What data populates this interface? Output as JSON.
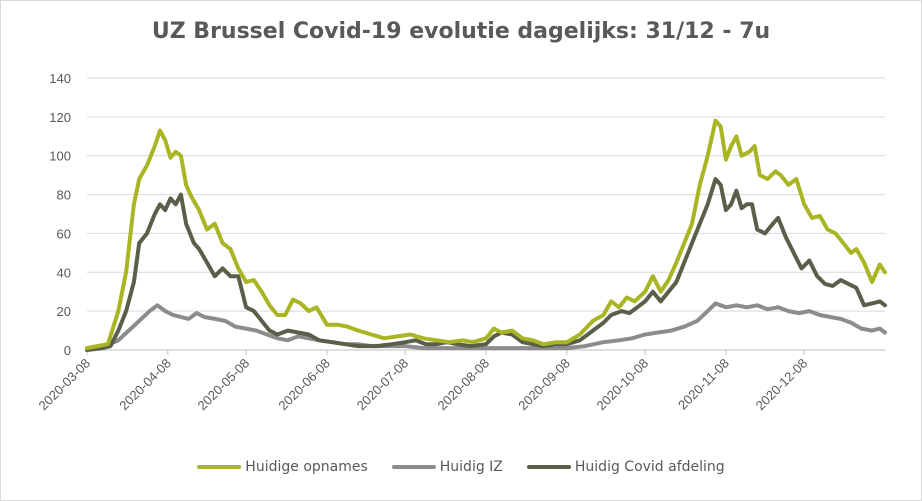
{
  "chart_data": {
    "type": "line",
    "title": "UZ Brussel Covid-19 evolutie dagelijks: 31/12 - 7u",
    "xlabel": "",
    "ylabel": "",
    "ylim": [
      0,
      140
    ],
    "yticks": [
      "0",
      "20",
      "40",
      "60",
      "80",
      "100",
      "120",
      "140"
    ],
    "x_range": [
      "2020-03-08",
      "2020-12-31"
    ],
    "xticks": [
      "2020-03-08",
      "2020-04-08",
      "2020-05-08",
      "2020-06-08",
      "2020-07-08",
      "2020-08-08",
      "2020-09-08",
      "2020-10-08",
      "2020-11-08",
      "2020-12-08"
    ],
    "grid": "horizontal",
    "legend": "bottom",
    "series": [
      {
        "name": "Huidige opnames",
        "color": "#a9b523",
        "points": [
          [
            "2020-03-08",
            1
          ],
          [
            "2020-03-12",
            2
          ],
          [
            "2020-03-16",
            3
          ],
          [
            "2020-03-20",
            20
          ],
          [
            "2020-03-23",
            40
          ],
          [
            "2020-03-26",
            75
          ],
          [
            "2020-03-28",
            88
          ],
          [
            "2020-03-31",
            95
          ],
          [
            "2020-04-03",
            105
          ],
          [
            "2020-04-05",
            113
          ],
          [
            "2020-04-07",
            108
          ],
          [
            "2020-04-09",
            99
          ],
          [
            "2020-04-11",
            102
          ],
          [
            "2020-04-13",
            100
          ],
          [
            "2020-04-15",
            85
          ],
          [
            "2020-04-17",
            79
          ],
          [
            "2020-04-20",
            72
          ],
          [
            "2020-04-23",
            62
          ],
          [
            "2020-04-26",
            65
          ],
          [
            "2020-04-29",
            55
          ],
          [
            "2020-05-02",
            52
          ],
          [
            "2020-05-05",
            42
          ],
          [
            "2020-05-08",
            35
          ],
          [
            "2020-05-11",
            36
          ],
          [
            "2020-05-14",
            30
          ],
          [
            "2020-05-17",
            23
          ],
          [
            "2020-05-20",
            18
          ],
          [
            "2020-05-23",
            18
          ],
          [
            "2020-05-26",
            26
          ],
          [
            "2020-05-29",
            24
          ],
          [
            "2020-06-01",
            20
          ],
          [
            "2020-06-04",
            22
          ],
          [
            "2020-06-08",
            13
          ],
          [
            "2020-06-12",
            13
          ],
          [
            "2020-06-16",
            12
          ],
          [
            "2020-06-20",
            10
          ],
          [
            "2020-06-25",
            8
          ],
          [
            "2020-06-30",
            6
          ],
          [
            "2020-07-05",
            7
          ],
          [
            "2020-07-10",
            8
          ],
          [
            "2020-07-15",
            6
          ],
          [
            "2020-07-20",
            5
          ],
          [
            "2020-07-25",
            4
          ],
          [
            "2020-07-30",
            5
          ],
          [
            "2020-08-03",
            4
          ],
          [
            "2020-08-08",
            6
          ],
          [
            "2020-08-11",
            11
          ],
          [
            "2020-08-14",
            9
          ],
          [
            "2020-08-18",
            10
          ],
          [
            "2020-08-22",
            6
          ],
          [
            "2020-08-26",
            5
          ],
          [
            "2020-08-30",
            3
          ],
          [
            "2020-09-04",
            4
          ],
          [
            "2020-09-08",
            4
          ],
          [
            "2020-09-13",
            8
          ],
          [
            "2020-09-18",
            15
          ],
          [
            "2020-09-22",
            18
          ],
          [
            "2020-09-25",
            25
          ],
          [
            "2020-09-28",
            22
          ],
          [
            "2020-10-01",
            27
          ],
          [
            "2020-10-04",
            25
          ],
          [
            "2020-10-08",
            30
          ],
          [
            "2020-10-11",
            38
          ],
          [
            "2020-10-14",
            30
          ],
          [
            "2020-10-17",
            36
          ],
          [
            "2020-10-20",
            45
          ],
          [
            "2020-10-23",
            55
          ],
          [
            "2020-10-26",
            65
          ],
          [
            "2020-10-29",
            85
          ],
          [
            "2020-11-01",
            100
          ],
          [
            "2020-11-04",
            118
          ],
          [
            "2020-11-06",
            115
          ],
          [
            "2020-11-08",
            98
          ],
          [
            "2020-11-10",
            105
          ],
          [
            "2020-11-12",
            110
          ],
          [
            "2020-11-14",
            100
          ],
          [
            "2020-11-17",
            102
          ],
          [
            "2020-11-19",
            105
          ],
          [
            "2020-11-21",
            90
          ],
          [
            "2020-11-24",
            88
          ],
          [
            "2020-11-27",
            92
          ],
          [
            "2020-11-29",
            90
          ],
          [
            "2020-12-02",
            85
          ],
          [
            "2020-12-05",
            88
          ],
          [
            "2020-12-08",
            75
          ],
          [
            "2020-12-11",
            68
          ],
          [
            "2020-12-14",
            69
          ],
          [
            "2020-12-17",
            62
          ],
          [
            "2020-12-20",
            60
          ],
          [
            "2020-12-23",
            55
          ],
          [
            "2020-12-26",
            50
          ],
          [
            "2020-12-28",
            52
          ],
          [
            "2020-12-31",
            45
          ],
          [
            "2021-01-03",
            35
          ],
          [
            "2021-01-06",
            44
          ],
          [
            "2021-01-08",
            40
          ]
        ]
      },
      {
        "name": "Huidig IZ",
        "color": "#8c8c8c",
        "points": [
          [
            "2020-03-08",
            1
          ],
          [
            "2020-03-15",
            2
          ],
          [
            "2020-03-20",
            5
          ],
          [
            "2020-03-24",
            10
          ],
          [
            "2020-03-28",
            15
          ],
          [
            "2020-04-01",
            20
          ],
          [
            "2020-04-04",
            23
          ],
          [
            "2020-04-07",
            20
          ],
          [
            "2020-04-10",
            18
          ],
          [
            "2020-04-13",
            17
          ],
          [
            "2020-04-16",
            16
          ],
          [
            "2020-04-19",
            19
          ],
          [
            "2020-04-22",
            17
          ],
          [
            "2020-04-26",
            16
          ],
          [
            "2020-04-30",
            15
          ],
          [
            "2020-05-04",
            12
          ],
          [
            "2020-05-08",
            11
          ],
          [
            "2020-05-12",
            10
          ],
          [
            "2020-05-16",
            8
          ],
          [
            "2020-05-20",
            6
          ],
          [
            "2020-05-24",
            5
          ],
          [
            "2020-05-28",
            7
          ],
          [
            "2020-06-01",
            6
          ],
          [
            "2020-06-05",
            5
          ],
          [
            "2020-06-10",
            4
          ],
          [
            "2020-06-15",
            3
          ],
          [
            "2020-06-20",
            3
          ],
          [
            "2020-06-25",
            2
          ],
          [
            "2020-07-01",
            2
          ],
          [
            "2020-07-08",
            2
          ],
          [
            "2020-07-15",
            1
          ],
          [
            "2020-07-22",
            1
          ],
          [
            "2020-07-30",
            1
          ],
          [
            "2020-08-08",
            1
          ],
          [
            "2020-08-15",
            1
          ],
          [
            "2020-08-22",
            1
          ],
          [
            "2020-08-30",
            1
          ],
          [
            "2020-09-08",
            1
          ],
          [
            "2020-09-15",
            2
          ],
          [
            "2020-09-22",
            4
          ],
          [
            "2020-09-28",
            5
          ],
          [
            "2020-10-03",
            6
          ],
          [
            "2020-10-08",
            8
          ],
          [
            "2020-10-13",
            9
          ],
          [
            "2020-10-18",
            10
          ],
          [
            "2020-10-23",
            12
          ],
          [
            "2020-10-28",
            15
          ],
          [
            "2020-11-01",
            20
          ],
          [
            "2020-11-04",
            24
          ],
          [
            "2020-11-08",
            22
          ],
          [
            "2020-11-12",
            23
          ],
          [
            "2020-11-16",
            22
          ],
          [
            "2020-11-20",
            23
          ],
          [
            "2020-11-24",
            21
          ],
          [
            "2020-11-28",
            22
          ],
          [
            "2020-12-02",
            20
          ],
          [
            "2020-12-06",
            19
          ],
          [
            "2020-12-10",
            20
          ],
          [
            "2020-12-14",
            18
          ],
          [
            "2020-12-18",
            17
          ],
          [
            "2020-12-22",
            16
          ],
          [
            "2020-12-26",
            14
          ],
          [
            "2020-12-30",
            11
          ],
          [
            "2021-01-03",
            10
          ],
          [
            "2021-01-06",
            11
          ],
          [
            "2021-01-08",
            9
          ]
        ]
      },
      {
        "name": "Huidig Covid afdeling",
        "color": "#5a5f4a",
        "points": [
          [
            "2020-03-08",
            0
          ],
          [
            "2020-03-14",
            1
          ],
          [
            "2020-03-17",
            2
          ],
          [
            "2020-03-20",
            10
          ],
          [
            "2020-03-23",
            20
          ],
          [
            "2020-03-26",
            35
          ],
          [
            "2020-03-28",
            55
          ],
          [
            "2020-03-31",
            60
          ],
          [
            "2020-04-03",
            70
          ],
          [
            "2020-04-05",
            75
          ],
          [
            "2020-04-07",
            72
          ],
          [
            "2020-04-09",
            78
          ],
          [
            "2020-04-11",
            75
          ],
          [
            "2020-04-13",
            80
          ],
          [
            "2020-04-15",
            65
          ],
          [
            "2020-04-18",
            55
          ],
          [
            "2020-04-20",
            52
          ],
          [
            "2020-04-23",
            45
          ],
          [
            "2020-04-26",
            38
          ],
          [
            "2020-04-29",
            42
          ],
          [
            "2020-05-02",
            38
          ],
          [
            "2020-05-05",
            38
          ],
          [
            "2020-05-08",
            22
          ],
          [
            "2020-05-11",
            20
          ],
          [
            "2020-05-14",
            15
          ],
          [
            "2020-05-17",
            10
          ],
          [
            "2020-05-20",
            8
          ],
          [
            "2020-05-24",
            10
          ],
          [
            "2020-05-28",
            9
          ],
          [
            "2020-06-01",
            8
          ],
          [
            "2020-06-05",
            5
          ],
          [
            "2020-06-10",
            4
          ],
          [
            "2020-06-15",
            3
          ],
          [
            "2020-06-20",
            2
          ],
          [
            "2020-06-27",
            2
          ],
          [
            "2020-07-03",
            3
          ],
          [
            "2020-07-08",
            4
          ],
          [
            "2020-07-12",
            5
          ],
          [
            "2020-07-16",
            3
          ],
          [
            "2020-07-20",
            3
          ],
          [
            "2020-07-24",
            4
          ],
          [
            "2020-07-28",
            3
          ],
          [
            "2020-08-02",
            2
          ],
          [
            "2020-08-08",
            3
          ],
          [
            "2020-08-11",
            7
          ],
          [
            "2020-08-14",
            9
          ],
          [
            "2020-08-18",
            8
          ],
          [
            "2020-08-22",
            4
          ],
          [
            "2020-08-26",
            3
          ],
          [
            "2020-08-30",
            2
          ],
          [
            "2020-09-04",
            3
          ],
          [
            "2020-09-08",
            3
          ],
          [
            "2020-09-13",
            5
          ],
          [
            "2020-09-18",
            10
          ],
          [
            "2020-09-22",
            14
          ],
          [
            "2020-09-25",
            18
          ],
          [
            "2020-09-29",
            20
          ],
          [
            "2020-10-02",
            19
          ],
          [
            "2020-10-05",
            22
          ],
          [
            "2020-10-08",
            25
          ],
          [
            "2020-10-11",
            30
          ],
          [
            "2020-10-14",
            25
          ],
          [
            "2020-10-17",
            30
          ],
          [
            "2020-10-20",
            35
          ],
          [
            "2020-10-23",
            45
          ],
          [
            "2020-10-26",
            55
          ],
          [
            "2020-10-29",
            65
          ],
          [
            "2020-11-01",
            75
          ],
          [
            "2020-11-04",
            88
          ],
          [
            "2020-11-06",
            85
          ],
          [
            "2020-11-08",
            72
          ],
          [
            "2020-11-10",
            75
          ],
          [
            "2020-11-12",
            82
          ],
          [
            "2020-11-14",
            73
          ],
          [
            "2020-11-16",
            75
          ],
          [
            "2020-11-18",
            75
          ],
          [
            "2020-11-20",
            62
          ],
          [
            "2020-11-23",
            60
          ],
          [
            "2020-11-26",
            65
          ],
          [
            "2020-11-28",
            68
          ],
          [
            "2020-12-01",
            58
          ],
          [
            "2020-12-04",
            50
          ],
          [
            "2020-12-07",
            42
          ],
          [
            "2020-12-10",
            46
          ],
          [
            "2020-12-13",
            38
          ],
          [
            "2020-12-16",
            34
          ],
          [
            "2020-12-19",
            33
          ],
          [
            "2020-12-22",
            36
          ],
          [
            "2020-12-25",
            34
          ],
          [
            "2020-12-28",
            32
          ],
          [
            "2020-12-31",
            23
          ],
          [
            "2021-01-03",
            24
          ],
          [
            "2021-01-06",
            25
          ],
          [
            "2021-01-08",
            23
          ]
        ]
      }
    ]
  }
}
